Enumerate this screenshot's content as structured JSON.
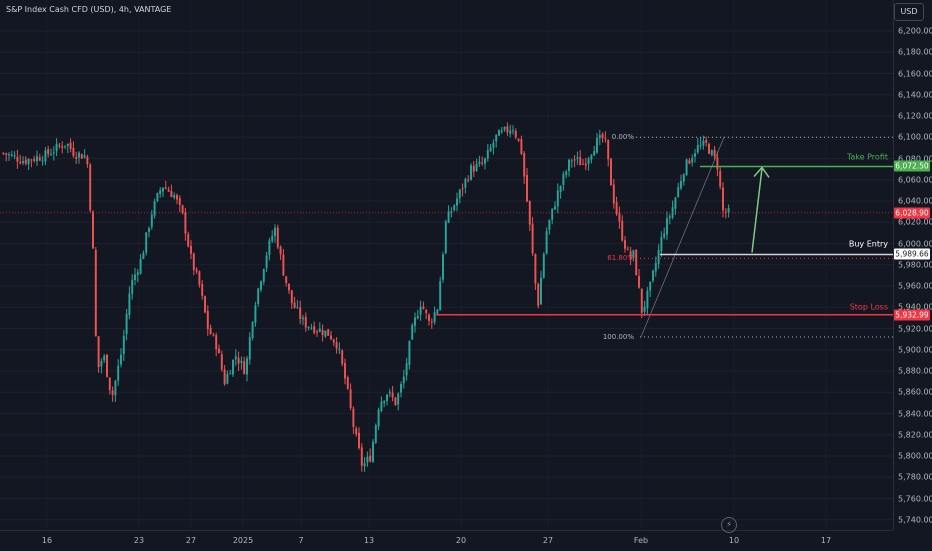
{
  "header": {
    "title": "S&P Index Cash CFD (USD), 4h, VANTAGE",
    "currency": "USD"
  },
  "price_axis": {
    "ticks": [
      "6,200.00",
      "6,180.00",
      "6,160.00",
      "6,140.00",
      "6,120.00",
      "6,100.00",
      "6,080.00",
      "6,060.00",
      "6,040.00",
      "6,020.00",
      "6,000.00",
      "5,980.00",
      "5,960.00",
      "5,940.00",
      "5,920.00",
      "5,900.00",
      "5,880.00",
      "5,860.00",
      "5,840.00",
      "5,820.00",
      "5,800.00",
      "5,780.00",
      "5,760.00",
      "5,740.00"
    ]
  },
  "time_axis": {
    "labels": [
      "16",
      "23",
      "27",
      "2025",
      "7",
      "13",
      "20",
      "27",
      "Feb",
      "10",
      "17"
    ]
  },
  "levels": {
    "take_profit": {
      "label": "Take Profit",
      "price": "6,072.50",
      "color": "#4caf50"
    },
    "current": {
      "price": "6,028.90",
      "color": "#f23645"
    },
    "buy_entry": {
      "label": "Buy Entry",
      "price": "5,989.66",
      "color": "#ffffff"
    },
    "stop_loss": {
      "label": "Stop Loss",
      "price": "5,932.99",
      "color": "#f23645"
    }
  },
  "fib": {
    "level_0": "0.00%",
    "level_618": "61.80%",
    "level_100": "100.00%"
  },
  "icons": {
    "bolt": "lightning-icon"
  },
  "chart_data": {
    "type": "candlestick",
    "symbol": "S&P Index Cash CFD (USD)",
    "interval": "4h",
    "broker": "VANTAGE",
    "ylim": [
      5740,
      6210
    ],
    "x_labels": [
      "16",
      "23",
      "27",
      "2025",
      "7",
      "13",
      "20",
      "27",
      "Feb",
      "10",
      "17"
    ],
    "colors": {
      "up": "#26a69a",
      "down": "#ef5350"
    },
    "path": [
      [
        0,
        6085
      ],
      [
        0.025,
        6078
      ],
      [
        0.05,
        6083
      ],
      [
        0.075,
        6095
      ],
      [
        0.085,
        6085
      ],
      [
        0.1,
        6082
      ],
      [
        0.107,
        6000
      ],
      [
        0.112,
        5880
      ],
      [
        0.12,
        5895
      ],
      [
        0.13,
        5855
      ],
      [
        0.142,
        5900
      ],
      [
        0.152,
        5960
      ],
      [
        0.165,
        5985
      ],
      [
        0.178,
        6030
      ],
      [
        0.19,
        6055
      ],
      [
        0.205,
        6045
      ],
      [
        0.215,
        6025
      ],
      [
        0.225,
        5985
      ],
      [
        0.235,
        5960
      ],
      [
        0.245,
        5920
      ],
      [
        0.255,
        5905
      ],
      [
        0.265,
        5870
      ],
      [
        0.278,
        5895
      ],
      [
        0.29,
        5880
      ],
      [
        0.3,
        5940
      ],
      [
        0.315,
        5990
      ],
      [
        0.325,
        6015
      ],
      [
        0.335,
        5975
      ],
      [
        0.345,
        5945
      ],
      [
        0.36,
        5925
      ],
      [
        0.375,
        5920
      ],
      [
        0.39,
        5915
      ],
      [
        0.4,
        5905
      ],
      [
        0.41,
        5870
      ],
      [
        0.42,
        5825
      ],
      [
        0.43,
        5790
      ],
      [
        0.44,
        5800
      ],
      [
        0.45,
        5850
      ],
      [
        0.46,
        5860
      ],
      [
        0.47,
        5850
      ],
      [
        0.48,
        5875
      ],
      [
        0.49,
        5920
      ],
      [
        0.5,
        5945
      ],
      [
        0.51,
        5925
      ],
      [
        0.52,
        5940
      ],
      [
        0.53,
        6020
      ],
      [
        0.545,
        6045
      ],
      [
        0.56,
        6070
      ],
      [
        0.575,
        6075
      ],
      [
        0.59,
        6100
      ],
      [
        0.61,
        6110
      ],
      [
        0.62,
        6090
      ],
      [
        0.63,
        6020
      ],
      [
        0.64,
        5940
      ],
      [
        0.65,
        6010
      ],
      [
        0.665,
        6050
      ],
      [
        0.68,
        6080
      ],
      [
        0.695,
        6075
      ],
      [
        0.71,
        6095
      ],
      [
        0.72,
        6100
      ],
      [
        0.73,
        6045
      ],
      [
        0.74,
        6010
      ],
      [
        0.75,
        5985
      ],
      [
        0.755,
        5990
      ],
      [
        0.765,
        5935
      ],
      [
        0.775,
        5960
      ],
      [
        0.79,
        6010
      ],
      [
        0.8,
        6030
      ],
      [
        0.815,
        6070
      ],
      [
        0.83,
        6090
      ],
      [
        0.842,
        6093
      ],
      [
        0.855,
        6075
      ],
      [
        0.862,
        6030
      ],
      [
        0.872,
        6028
      ]
    ]
  }
}
